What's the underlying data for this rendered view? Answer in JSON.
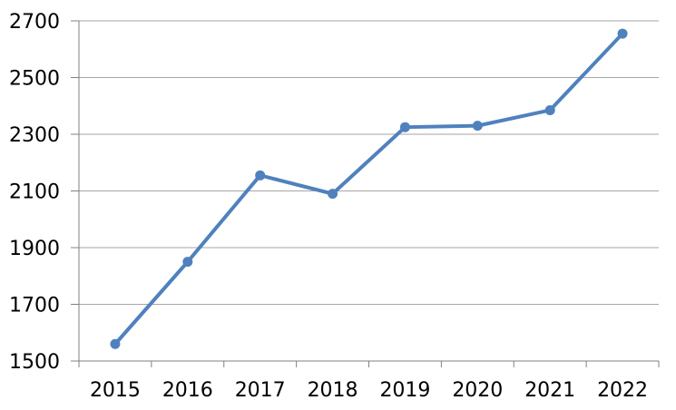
{
  "chart_data": {
    "type": "line",
    "title": "",
    "xlabel": "",
    "ylabel": "",
    "categories": [
      "2015",
      "2016",
      "2017",
      "2018",
      "2019",
      "2020",
      "2021",
      "2022"
    ],
    "series": [
      {
        "name": "",
        "values": [
          1560,
          1850,
          2155,
          2090,
          2325,
          2330,
          2385,
          2655
        ]
      }
    ],
    "ylim": [
      1500,
      2700
    ],
    "yticks": [
      1500,
      1700,
      1900,
      2100,
      2300,
      2500,
      2700
    ],
    "ytick_step": 200,
    "grid": "horizontal",
    "legend": "none",
    "marker": "circle",
    "colors": {
      "series": "#4F81BD",
      "gridline": "#A6A6A6",
      "axis": "#808080",
      "tick_label": "#000000",
      "background": "#FFFFFF"
    }
  }
}
